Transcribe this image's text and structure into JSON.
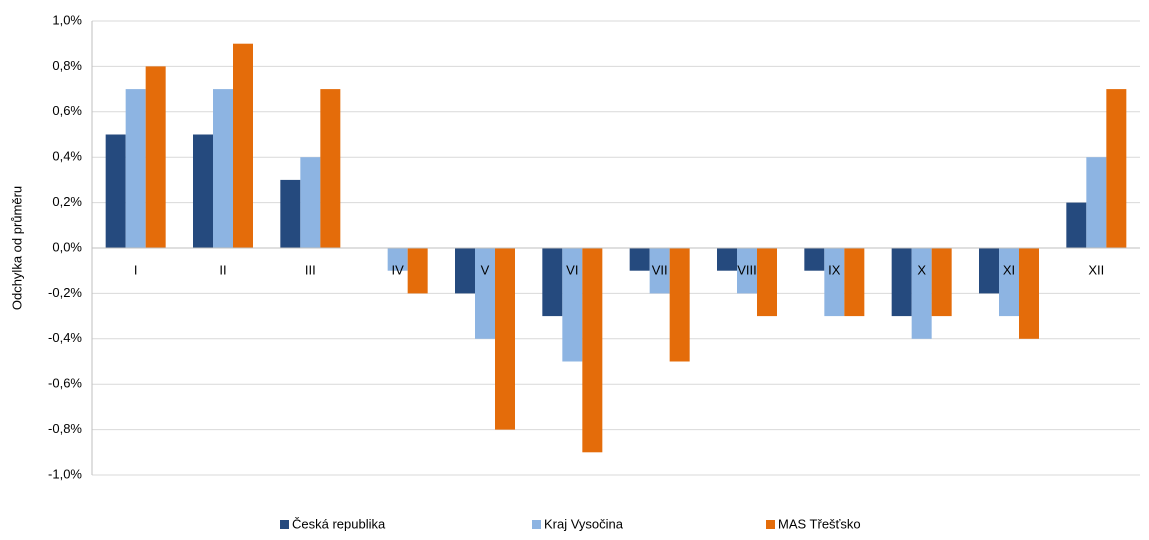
{
  "chart_data": {
    "type": "bar",
    "y_label": "Odchylka od průměru",
    "categories": [
      "I",
      "II",
      "III",
      "IV",
      "V",
      "VI",
      "VII",
      "VIII",
      "IX",
      "X",
      "XI",
      "XII"
    ],
    "series": [
      {
        "name": "Česká republika",
        "color": "#254a7e",
        "values": [
          0.5,
          0.5,
          0.3,
          0,
          -0.2,
          -0.3,
          -0.1,
          -0.1,
          -0.1,
          -0.3,
          -0.2,
          0.2
        ]
      },
      {
        "name": "Kraj Vysočina",
        "color": "#8db4e2",
        "values": [
          0.7,
          0.7,
          0.4,
          -0.1,
          -0.4,
          -0.5,
          -0.2,
          -0.2,
          -0.3,
          -0.4,
          -0.3,
          0.4
        ]
      },
      {
        "name": "MAS Třešťsko",
        "color": "#e46c0a",
        "values": [
          0.8,
          0.9,
          0.7,
          -0.2,
          -0.8,
          -0.9,
          -0.5,
          -0.3,
          -0.3,
          -0.3,
          -0.4,
          0.7
        ]
      }
    ],
    "ylim": [
      -1.0,
      1.0
    ],
    "yticks": [
      {
        "value": -1.0,
        "label": "-1,0%"
      },
      {
        "value": -0.8,
        "label": "-0,8%"
      },
      {
        "value": -0.6,
        "label": "-0,6%"
      },
      {
        "value": -0.4,
        "label": "-0,4%"
      },
      {
        "value": -0.2,
        "label": "-0,2%"
      },
      {
        "value": 0,
        "label": "0,0%"
      },
      {
        "value": 0.2,
        "label": "0,2%"
      },
      {
        "value": 0.4,
        "label": "0,4%"
      },
      {
        "value": 0.6,
        "label": "0,6%"
      },
      {
        "value": 0.8,
        "label": "0,8%"
      },
      {
        "value": 1.0,
        "label": "1,0%"
      }
    ],
    "grid": true
  }
}
